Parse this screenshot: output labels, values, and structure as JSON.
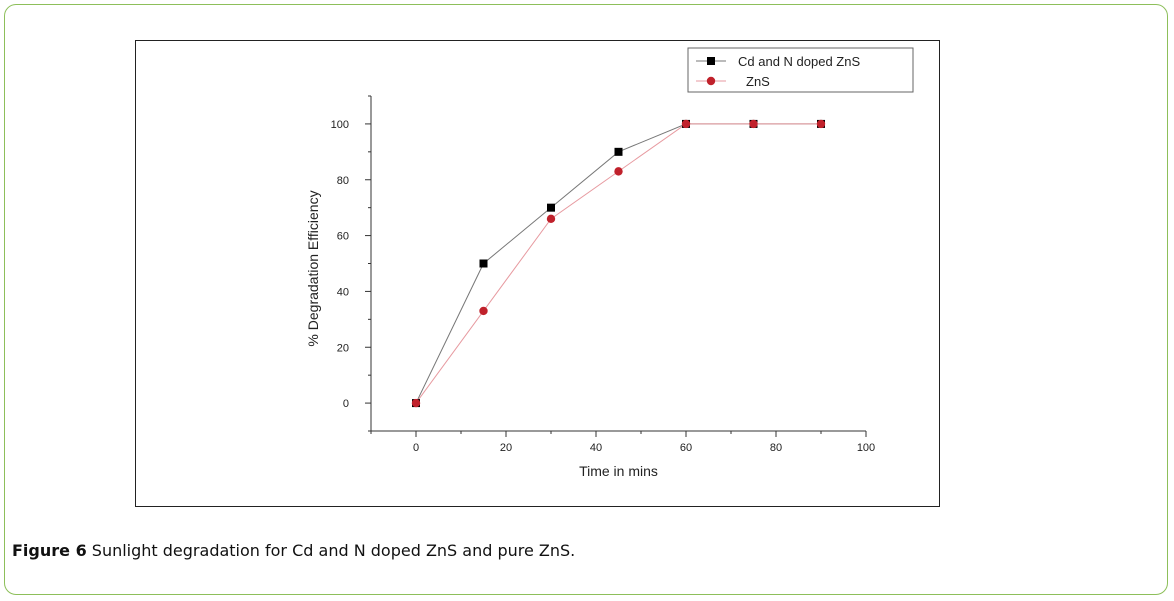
{
  "caption": {
    "label": "Figure 6",
    "text": " Sunlight degradation for Cd and N doped ZnS and pure ZnS."
  },
  "chart_data": {
    "type": "line",
    "title": "",
    "xlabel": "Time in mins",
    "ylabel": "% Degradation Efficiency",
    "xlim": [
      -10,
      100
    ],
    "ylim": [
      -10,
      110
    ],
    "xticks": [
      0,
      20,
      40,
      60,
      80,
      100
    ],
    "yticks": [
      0,
      20,
      40,
      60,
      80,
      100
    ],
    "legend_position": "top-right",
    "grid": false,
    "series": [
      {
        "name": "Cd and N doped ZnS",
        "marker": "square",
        "marker_color": "#000000",
        "line_color": "#777777",
        "x": [
          0,
          15,
          30,
          45,
          60,
          75,
          90
        ],
        "y": [
          0,
          50,
          70,
          90,
          100,
          100,
          100
        ]
      },
      {
        "name": "ZnS",
        "marker": "circle",
        "marker_color": "#c0212b",
        "line_color": "#e79aa0",
        "x": [
          0,
          15,
          30,
          45,
          60,
          75,
          90
        ],
        "y": [
          0,
          33,
          66,
          83,
          100,
          100,
          100
        ]
      }
    ]
  }
}
